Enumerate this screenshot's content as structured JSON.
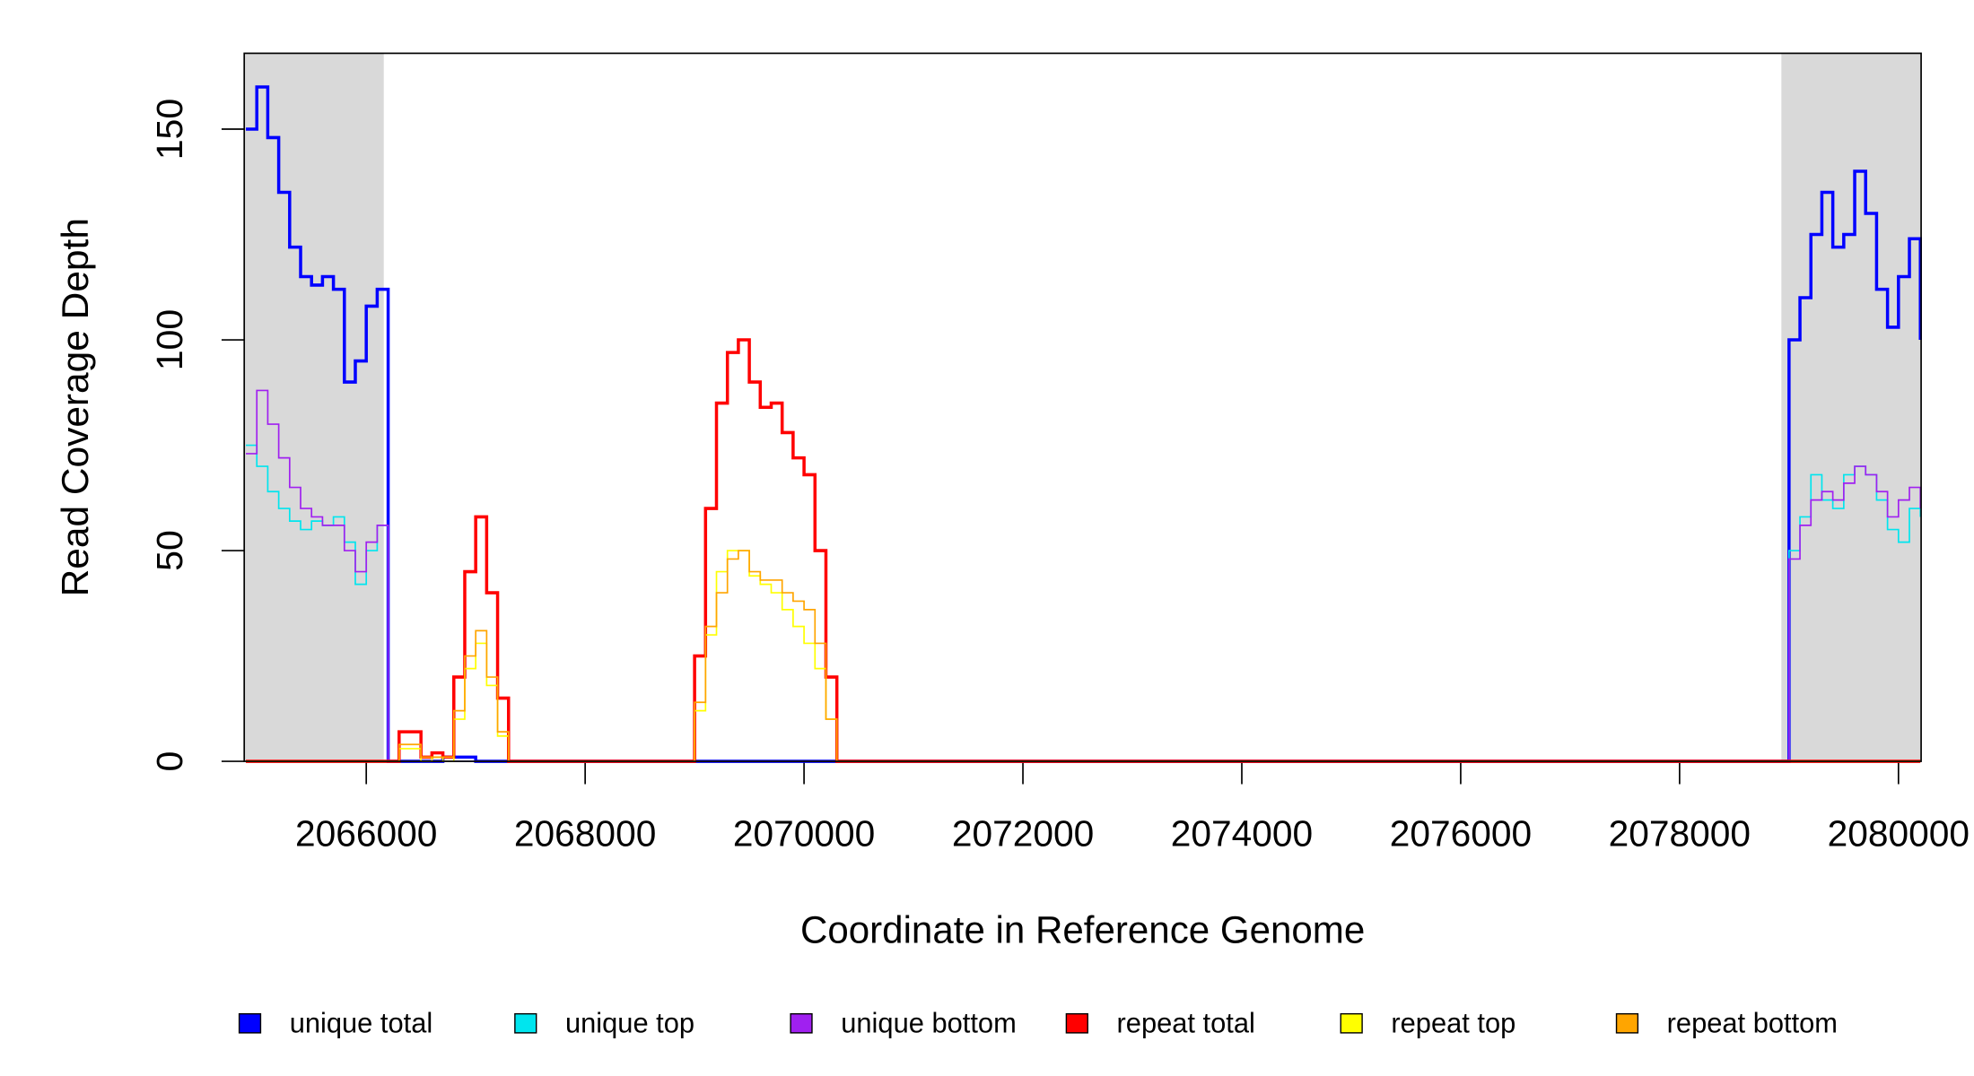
{
  "chart_data": {
    "type": "line",
    "xlabel": "Coordinate in Reference Genome",
    "ylabel": "Read Coverage Depth",
    "xlim": [
      2064885,
      2080207
    ],
    "ylim": [
      0,
      168
    ],
    "xticks": [
      2066000,
      2068000,
      2070000,
      2072000,
      2074000,
      2076000,
      2078000,
      2080000
    ],
    "yticks": [
      0,
      50,
      100,
      150
    ],
    "shaded_regions": [
      [
        2064885,
        2066160
      ],
      [
        2078930,
        2080207
      ]
    ],
    "shade_color": "#d9d9d9",
    "x": [
      2064900,
      2065000,
      2065100,
      2065200,
      2065300,
      2065400,
      2065500,
      2065600,
      2065700,
      2065800,
      2065900,
      2066000,
      2066100,
      2066200,
      2066300,
      2066400,
      2066500,
      2066600,
      2066700,
      2066800,
      2066900,
      2067000,
      2067100,
      2067200,
      2067300,
      2067400,
      2067500,
      2067600,
      2067700,
      2067800,
      2067900,
      2068000,
      2068100,
      2068200,
      2068300,
      2068400,
      2068500,
      2068600,
      2068700,
      2068800,
      2068900,
      2069000,
      2069100,
      2069200,
      2069300,
      2069400,
      2069500,
      2069600,
      2069700,
      2069800,
      2069900,
      2070000,
      2070100,
      2070200,
      2070300,
      2070400,
      2078900,
      2079000,
      2079100,
      2079200,
      2079300,
      2079400,
      2079500,
      2079600,
      2079700,
      2079800,
      2079900,
      2080000,
      2080100,
      2080200
    ],
    "series": [
      {
        "name": "unique total",
        "color": "#0000ff",
        "width": 2.5,
        "values": [
          150,
          160,
          148,
          135,
          122,
          115,
          113,
          115,
          112,
          90,
          95,
          108,
          112,
          0,
          0,
          0,
          0,
          0,
          1,
          1,
          1,
          0,
          0,
          0,
          0,
          0,
          0,
          0,
          0,
          0,
          0,
          0,
          0,
          0,
          0,
          0,
          0,
          0,
          0,
          0,
          0,
          0,
          0,
          0,
          0,
          0,
          0,
          0,
          0,
          0,
          0,
          0,
          0,
          0,
          0,
          0,
          0,
          100,
          110,
          125,
          135,
          122,
          125,
          140,
          130,
          112,
          103,
          115,
          124,
          100
        ]
      },
      {
        "name": "unique top",
        "color": "#00e5ee",
        "width": 1.2,
        "values": [
          75,
          70,
          64,
          60,
          57,
          55,
          57,
          56,
          58,
          52,
          42,
          50,
          56,
          0,
          0,
          0,
          0,
          0,
          0,
          0,
          0,
          0,
          0,
          0,
          0,
          0,
          0,
          0,
          0,
          0,
          0,
          0,
          0,
          0,
          0,
          0,
          0,
          0,
          0,
          0,
          0,
          0,
          0,
          0,
          0,
          0,
          0,
          0,
          0,
          0,
          0,
          0,
          0,
          0,
          0,
          0,
          0,
          50,
          58,
          68,
          62,
          60,
          68,
          70,
          68,
          62,
          55,
          52,
          60,
          58
        ]
      },
      {
        "name": "unique bottom",
        "color": "#a020f0",
        "width": 1.2,
        "values": [
          73,
          88,
          80,
          72,
          65,
          60,
          58,
          56,
          56,
          50,
          45,
          52,
          56,
          0,
          0,
          0,
          0,
          0,
          0,
          0,
          0,
          0,
          0,
          0,
          0,
          0,
          0,
          0,
          0,
          0,
          0,
          0,
          0,
          0,
          0,
          0,
          0,
          0,
          0,
          0,
          0,
          0,
          0,
          0,
          0,
          0,
          0,
          0,
          0,
          0,
          0,
          0,
          0,
          0,
          0,
          0,
          0,
          48,
          56,
          62,
          64,
          62,
          66,
          70,
          68,
          64,
          58,
          62,
          65,
          60
        ]
      },
      {
        "name": "repeat total",
        "color": "#ff0000",
        "width": 2.5,
        "values": [
          0,
          0,
          0,
          0,
          0,
          0,
          0,
          0,
          0,
          0,
          0,
          0,
          0,
          0,
          7,
          7,
          1,
          2,
          1,
          20,
          45,
          58,
          40,
          15,
          0,
          0,
          0,
          0,
          0,
          0,
          0,
          0,
          0,
          0,
          0,
          0,
          0,
          0,
          0,
          0,
          0,
          25,
          60,
          85,
          97,
          100,
          90,
          84,
          85,
          78,
          72,
          68,
          50,
          20,
          0,
          0,
          0,
          0,
          0,
          0,
          0,
          0,
          0,
          0,
          0,
          0,
          0,
          0,
          0,
          0
        ]
      },
      {
        "name": "repeat top",
        "color": "#ffff00",
        "width": 1.2,
        "values": [
          0,
          0,
          0,
          0,
          0,
          0,
          0,
          0,
          0,
          0,
          0,
          0,
          0,
          0,
          3,
          3,
          0,
          1,
          0,
          10,
          22,
          28,
          18,
          6,
          0,
          0,
          0,
          0,
          0,
          0,
          0,
          0,
          0,
          0,
          0,
          0,
          0,
          0,
          0,
          0,
          0,
          12,
          30,
          45,
          50,
          50,
          44,
          42,
          40,
          36,
          32,
          28,
          22,
          10,
          0,
          0,
          0,
          0,
          0,
          0,
          0,
          0,
          0,
          0,
          0,
          0,
          0,
          0,
          0,
          0
        ]
      },
      {
        "name": "repeat bottom",
        "color": "#ffa500",
        "width": 1.2,
        "values": [
          0,
          0,
          0,
          0,
          0,
          0,
          0,
          0,
          0,
          0,
          0,
          0,
          0,
          0,
          4,
          4,
          1,
          1,
          1,
          12,
          25,
          31,
          20,
          7,
          0,
          0,
          0,
          0,
          0,
          0,
          0,
          0,
          0,
          0,
          0,
          0,
          0,
          0,
          0,
          0,
          0,
          14,
          32,
          40,
          48,
          50,
          45,
          43,
          43,
          40,
          38,
          36,
          28,
          10,
          0,
          0,
          0,
          0,
          0,
          0,
          0,
          0,
          0,
          0,
          0,
          0,
          0,
          0,
          0,
          0
        ]
      }
    ]
  }
}
